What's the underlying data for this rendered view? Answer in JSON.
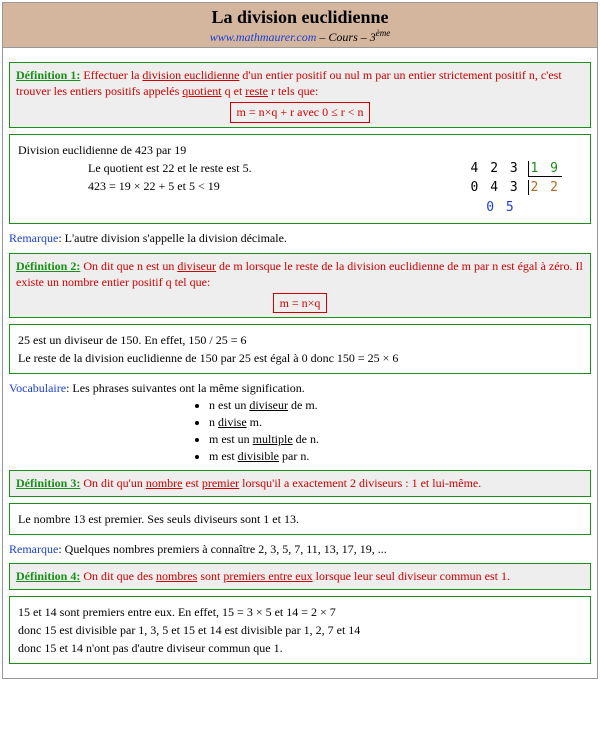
{
  "header": {
    "title": "La division euclidienne",
    "link": "www.mathmaurer.com",
    "sep1": " – ",
    "cours": "Cours",
    "sep2": " – ",
    "level": "3",
    "level_suffix": "ème"
  },
  "def1": {
    "label": "Définition 1:",
    "body_a": " Effectuer la ",
    "body_b_u": "division euclidienne",
    "body_c": " d'un entier positif ou nul m par un entier strictement positif  n, c'est trouver les entiers positifs appelés ",
    "body_d_u": "quotient",
    "body_e": " q et ",
    "body_f_u": "reste",
    "body_g": " r tels que:",
    "formula": "m = n×q + r avec 0 ≤ r < n"
  },
  "ex1": {
    "line1": "Division euclidienne de 423 par 19",
    "line2": "Le quotient est 22 et le reste est 5.",
    "line3": "423 = 19 × 22 + 5  et  5 < 19",
    "div_dividend": "4 2 3",
    "div_divisor": "1 9",
    "div_step": "0 4 3",
    "div_quot": "2 2",
    "div_rest": "0 5"
  },
  "rem1": {
    "label": "Remarque",
    "text": ": L'autre division s'appelle la division décimale."
  },
  "def2": {
    "label": "Définition 2:",
    "body_a": " On dit que  n  est un ",
    "body_b_u": "diviseur",
    "body_c": " de  m  lorsque le reste de la division euclidienne de  m  par  n  est égal à zéro. Il existe un nombre entier positif  q tel que:",
    "formula": "m = n×q"
  },
  "ex2": {
    "line1": "25 est un diviseur de 150.  En effet,   150 / 25 = 6",
    "line2": "Le reste de la division euclidienne de 150 par 25 est égal à 0 donc 150 = 25 × 6"
  },
  "vocab": {
    "label": "Vocabulaire",
    "intro": ": Les phrases suivantes ont la même signification.",
    "i1a": "n est un ",
    "i1b_u": "diviseur",
    "i1c": " de m.",
    "i2a": "n ",
    "i2b_u": "divise",
    "i2c": " m.",
    "i3a": "m est un ",
    "i3b_u": "multiple",
    "i3c": " de n.",
    "i4a": "m est ",
    "i4b_u": "divisible",
    "i4c": " par n."
  },
  "def3": {
    "label": "Définition 3:",
    "body_a": " On dit qu'un ",
    "body_b_u": "nombre",
    "body_c": " est ",
    "body_d_u": "premier",
    "body_e": " lorsqu'il a exactement 2 diviseurs : 1 et lui-même."
  },
  "ex3": {
    "line1": "Le nombre 13 est premier. Ses seuls diviseurs sont 1 et 13."
  },
  "rem2": {
    "label": "Remarque",
    "text": ": Quelques nombres premiers à connaître  2, 3, 5, 7, 11, 13, 17, 19, ..."
  },
  "def4": {
    "label": "Définition 4:",
    "body_a": " On dit que des ",
    "body_b_u": "nombres",
    "body_c": " sont ",
    "body_d_u": "premiers entre eux",
    "body_e": " lorsque leur seul diviseur commun est 1."
  },
  "ex4": {
    "line1": "15 et  14 sont premiers entre eux. En effet,  15 = 3 × 5  et  14 = 2 × 7",
    "line2": "donc 15 est divisible par 1, 3, 5 et 15  et  14 est divisible par 1, 2, 7 et 14",
    "line3": "donc 15 et 14 n'ont pas d'autre diviseur commun que 1."
  }
}
